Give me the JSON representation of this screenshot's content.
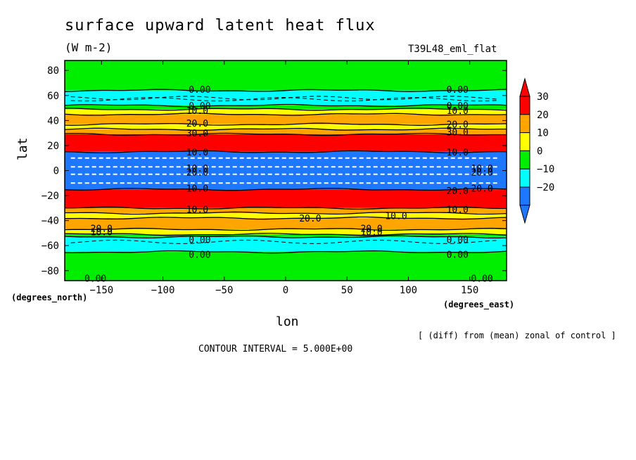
{
  "chart_data": {
    "type": "heatmap",
    "title": "surface upward latent heat flux",
    "units": "(W m-2)",
    "model_label": "T39L48_eml_flat",
    "xlabel": "lon",
    "ylabel": "lat",
    "x_unit_label": "(degrees_east)",
    "y_unit_label": "(degrees_north)",
    "note": "[ (diff) from (mean) zonal of control ]",
    "contour_interval_text": "CONTOUR INTERVAL = 5.000E+00",
    "xlim": [
      -180,
      180
    ],
    "ylim": [
      -88,
      88
    ],
    "x_ticks": [
      -150,
      -100,
      -50,
      0,
      50,
      100,
      150
    ],
    "y_ticks": [
      80,
      60,
      40,
      20,
      0,
      -20,
      -40,
      -60,
      -80
    ],
    "colorbar": {
      "levels": [
        -20,
        -10,
        0,
        10,
        20,
        30
      ],
      "colors": [
        "#1e78ff",
        "#00ffff",
        "#00ee00",
        "#ffff00",
        "#ffa500",
        "#ff0000"
      ],
      "extend_low_color": "#1e78ff",
      "extend_high_color": "#ff0000"
    },
    "lat_bands": [
      {
        "lat_top": 88,
        "lat_bottom": 64,
        "value_class": 0,
        "color": "#00ee00"
      },
      {
        "lat_top": 64,
        "lat_bottom": 52,
        "value_class": -10,
        "color": "#00ffff"
      },
      {
        "lat_top": 52,
        "lat_bottom": 49,
        "value_class": 0,
        "color": "#00ee00"
      },
      {
        "lat_top": 49,
        "lat_bottom": 45,
        "value_class": 10,
        "color": "#ffff00"
      },
      {
        "lat_top": 45,
        "lat_bottom": 37,
        "value_class": 20,
        "color": "#ffa500"
      },
      {
        "lat_top": 37,
        "lat_bottom": 33,
        "value_class": 10,
        "color": "#ffff00"
      },
      {
        "lat_top": 33,
        "lat_bottom": 29,
        "value_class": 20,
        "color": "#ffa500"
      },
      {
        "lat_top": 29,
        "lat_bottom": 15,
        "value_class": 30,
        "color": "#ff0000"
      },
      {
        "lat_top": 15,
        "lat_bottom": -15,
        "value_class": -20,
        "color": "#1e78ff"
      },
      {
        "lat_top": -15,
        "lat_bottom": -30,
        "value_class": 30,
        "color": "#ff0000"
      },
      {
        "lat_top": -30,
        "lat_bottom": -34,
        "value_class": 20,
        "color": "#ffa500"
      },
      {
        "lat_top": -34,
        "lat_bottom": -38,
        "value_class": 10,
        "color": "#ffff00"
      },
      {
        "lat_top": -38,
        "lat_bottom": -47,
        "value_class": 20,
        "color": "#ffa500"
      },
      {
        "lat_top": -47,
        "lat_bottom": -51,
        "value_class": 10,
        "color": "#ffff00"
      },
      {
        "lat_top": -51,
        "lat_bottom": -53,
        "value_class": 0,
        "color": "#00ee00"
      },
      {
        "lat_top": -53,
        "lat_bottom": -65,
        "value_class": -10,
        "color": "#00ffff"
      },
      {
        "lat_top": -65,
        "lat_bottom": -88,
        "value_class": 0,
        "color": "#00ee00"
      }
    ],
    "contour_labels": [
      {
        "text": "0.00",
        "lon": -70,
        "lat": 65
      },
      {
        "text": "0.00",
        "lon": 140,
        "lat": 65
      },
      {
        "text": "0.00",
        "lon": -70,
        "lat": 52
      },
      {
        "text": "0.00",
        "lon": 140,
        "lat": 52
      },
      {
        "text": "10.0",
        "lon": -72,
        "lat": 48
      },
      {
        "text": "10.0",
        "lon": 140,
        "lat": 48
      },
      {
        "text": "20.0",
        "lon": -72,
        "lat": 38
      },
      {
        "text": "20.0",
        "lon": 140,
        "lat": 37
      },
      {
        "text": "30.0",
        "lon": -72,
        "lat": 30
      },
      {
        "text": "30.0",
        "lon": 140,
        "lat": 31
      },
      {
        "text": "10.0",
        "lon": -72,
        "lat": 15
      },
      {
        "text": "10.0",
        "lon": 140,
        "lat": 15
      },
      {
        "text": "10.0",
        "lon": -72,
        "lat": 2
      },
      {
        "text": "10.0",
        "lon": 160,
        "lat": 2
      },
      {
        "text": "20.0",
        "lon": -72,
        "lat": -1
      },
      {
        "text": "20.0",
        "lon": 160,
        "lat": -1
      },
      {
        "text": "10.0",
        "lon": -72,
        "lat": -14
      },
      {
        "text": "20.0",
        "lon": 140,
        "lat": -16
      },
      {
        "text": "20.0",
        "lon": 160,
        "lat": -14
      },
      {
        "text": "10.0",
        "lon": -72,
        "lat": -31
      },
      {
        "text": "10.0",
        "lon": 140,
        "lat": -31
      },
      {
        "text": "10.0",
        "lon": 90,
        "lat": -36
      },
      {
        "text": "20.0",
        "lon": 20,
        "lat": -38
      },
      {
        "text": "20.0",
        "lon": -150,
        "lat": -46
      },
      {
        "text": "20.0",
        "lon": 70,
        "lat": -46
      },
      {
        "text": "10.0",
        "lon": -150,
        "lat": -49
      },
      {
        "text": "10.0",
        "lon": 70,
        "lat": -49
      },
      {
        "text": "0.00",
        "lon": -70,
        "lat": -55
      },
      {
        "text": "0.00",
        "lon": 140,
        "lat": -55
      },
      {
        "text": "0.00",
        "lon": -70,
        "lat": -67
      },
      {
        "text": "0.00",
        "lon": 140,
        "lat": -67
      },
      {
        "text": "0.00",
        "lon": -155,
        "lat": -86
      },
      {
        "text": "0.00",
        "lon": 160,
        "lat": -86
      }
    ],
    "dashed_contour_lats": [
      58,
      57,
      -57,
      10,
      3,
      -3,
      -10
    ]
  }
}
